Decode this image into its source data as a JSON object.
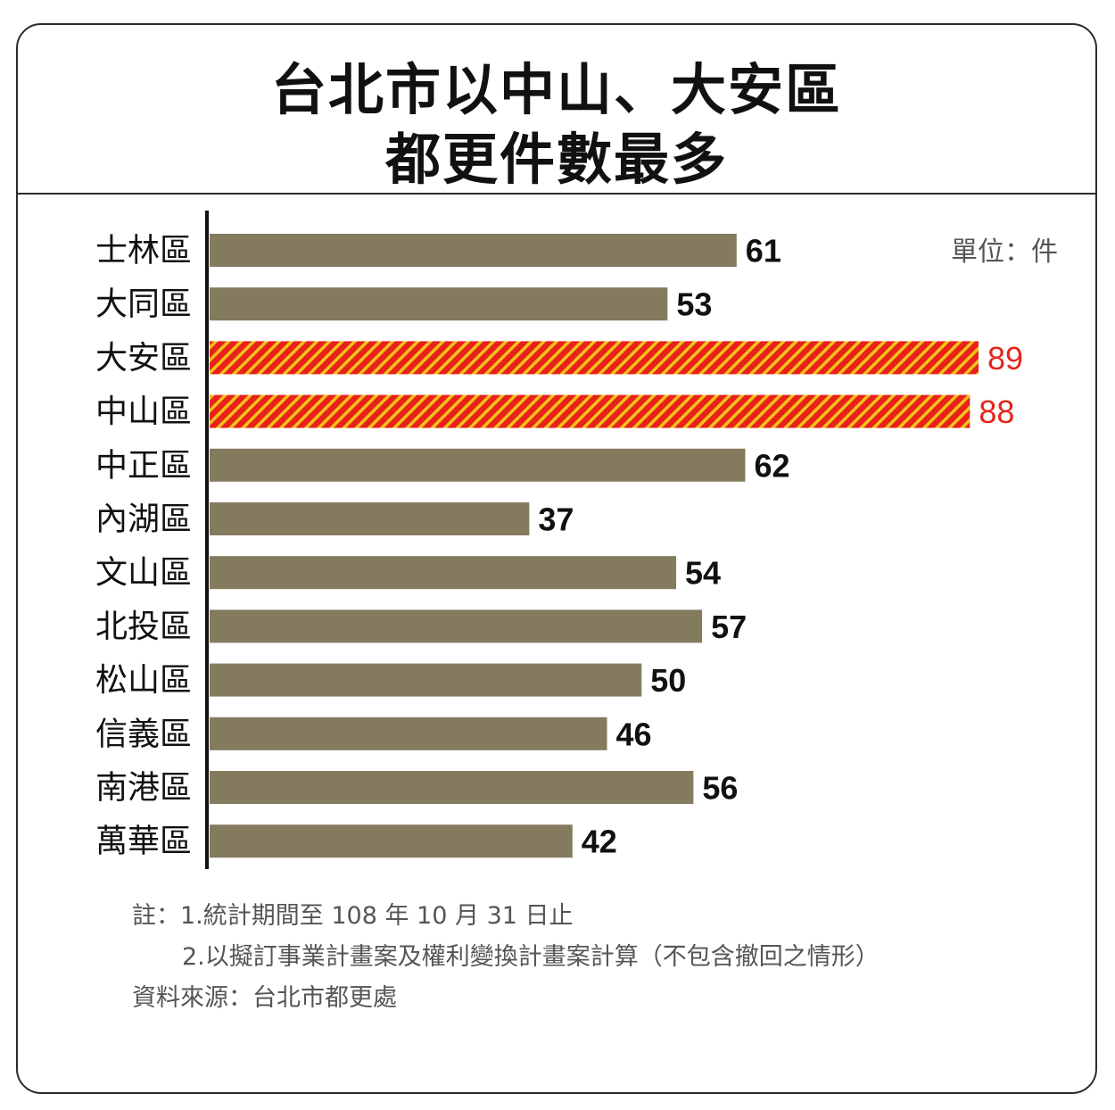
{
  "title": {
    "line1": "台北市以中山、大安區",
    "line2": "都更件數最多"
  },
  "unit_label": "單位：件",
  "colors": {
    "normal_bar": "#847b5f",
    "highlight_bar": "#e8221a",
    "highlight_stripe": "#f3c21a",
    "highlight_text": "#e4251b",
    "text": "#111111"
  },
  "chart_data": {
    "type": "bar",
    "orientation": "horizontal",
    "categories": [
      "士林區",
      "大同區",
      "大安區",
      "中山區",
      "中正區",
      "內湖區",
      "文山區",
      "北投區",
      "松山區",
      "信義區",
      "南港區",
      "萬華區"
    ],
    "values": [
      61,
      53,
      89,
      88,
      62,
      37,
      54,
      57,
      50,
      46,
      56,
      42
    ],
    "highlighted": [
      "大安區",
      "中山區"
    ],
    "unit": "件",
    "xlim": [
      0,
      89
    ],
    "grid": false,
    "legend": "none"
  },
  "notes": {
    "line1": "註：1.統計期間至 108 年 10 月 31 日止",
    "line2": "2.以擬訂事業計畫案及權利變換計畫案計算（不包含撤回之情形）",
    "source": "資料來源：台北市都更處"
  }
}
